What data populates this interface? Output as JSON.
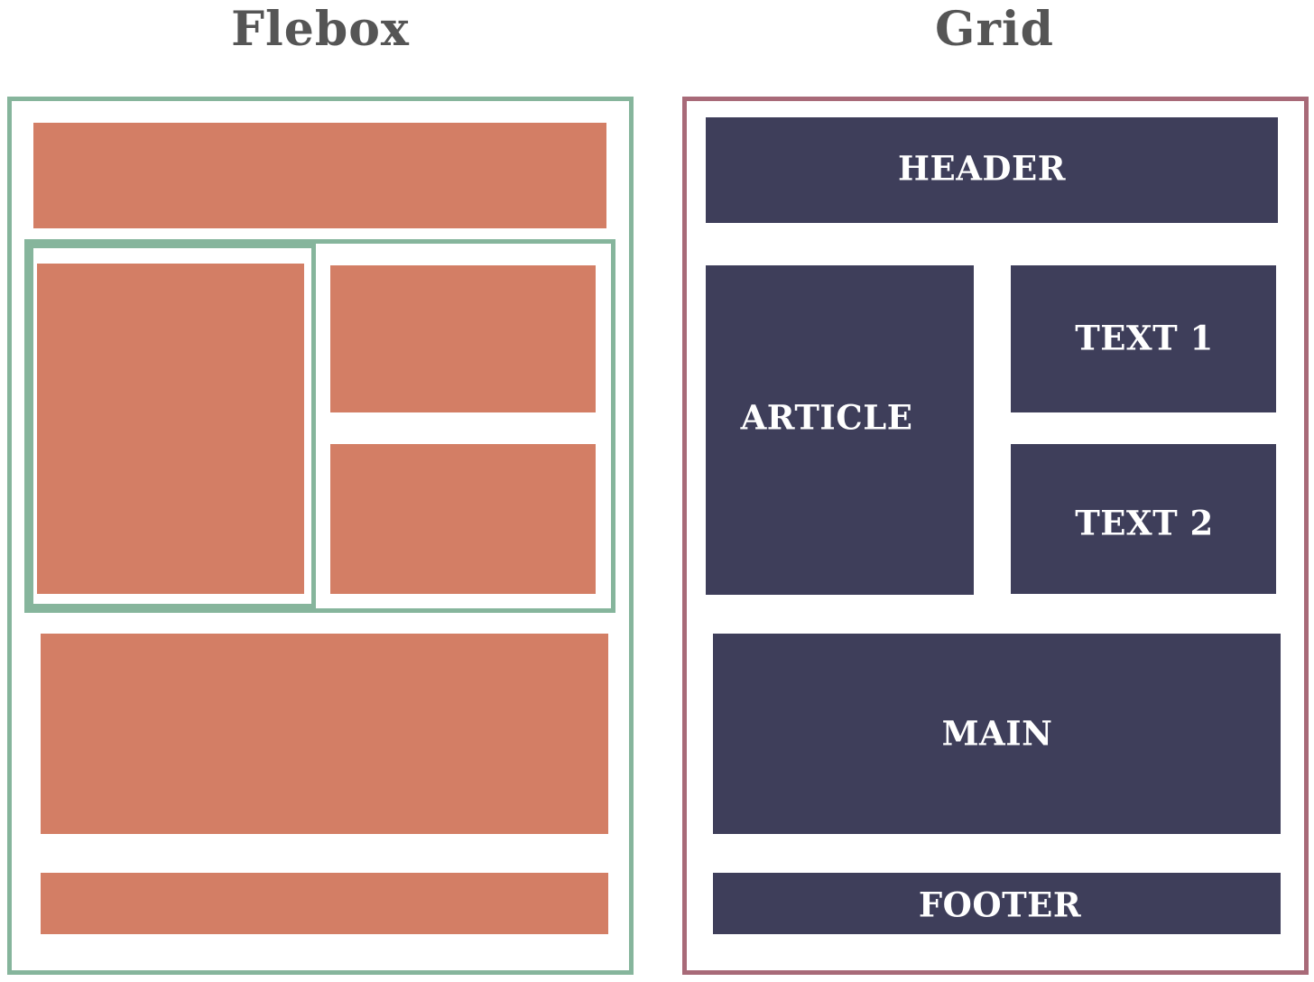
{
  "flexbox": {
    "title": "Flebox"
  },
  "grid": {
    "title": "Grid",
    "labels": {
      "header": "HEADER",
      "article": "ARTICLE",
      "text1": "TEXT 1",
      "text2": "TEXT 2",
      "main": "MAIN",
      "footer": "FOOTER"
    }
  },
  "colors": {
    "flex_block": "#d37e65",
    "flex_border": "#86b59c",
    "grid_block": "#3e3e5a",
    "grid_border": "#a86a78",
    "title_text": "#555555",
    "label_text": "#ffffff"
  }
}
